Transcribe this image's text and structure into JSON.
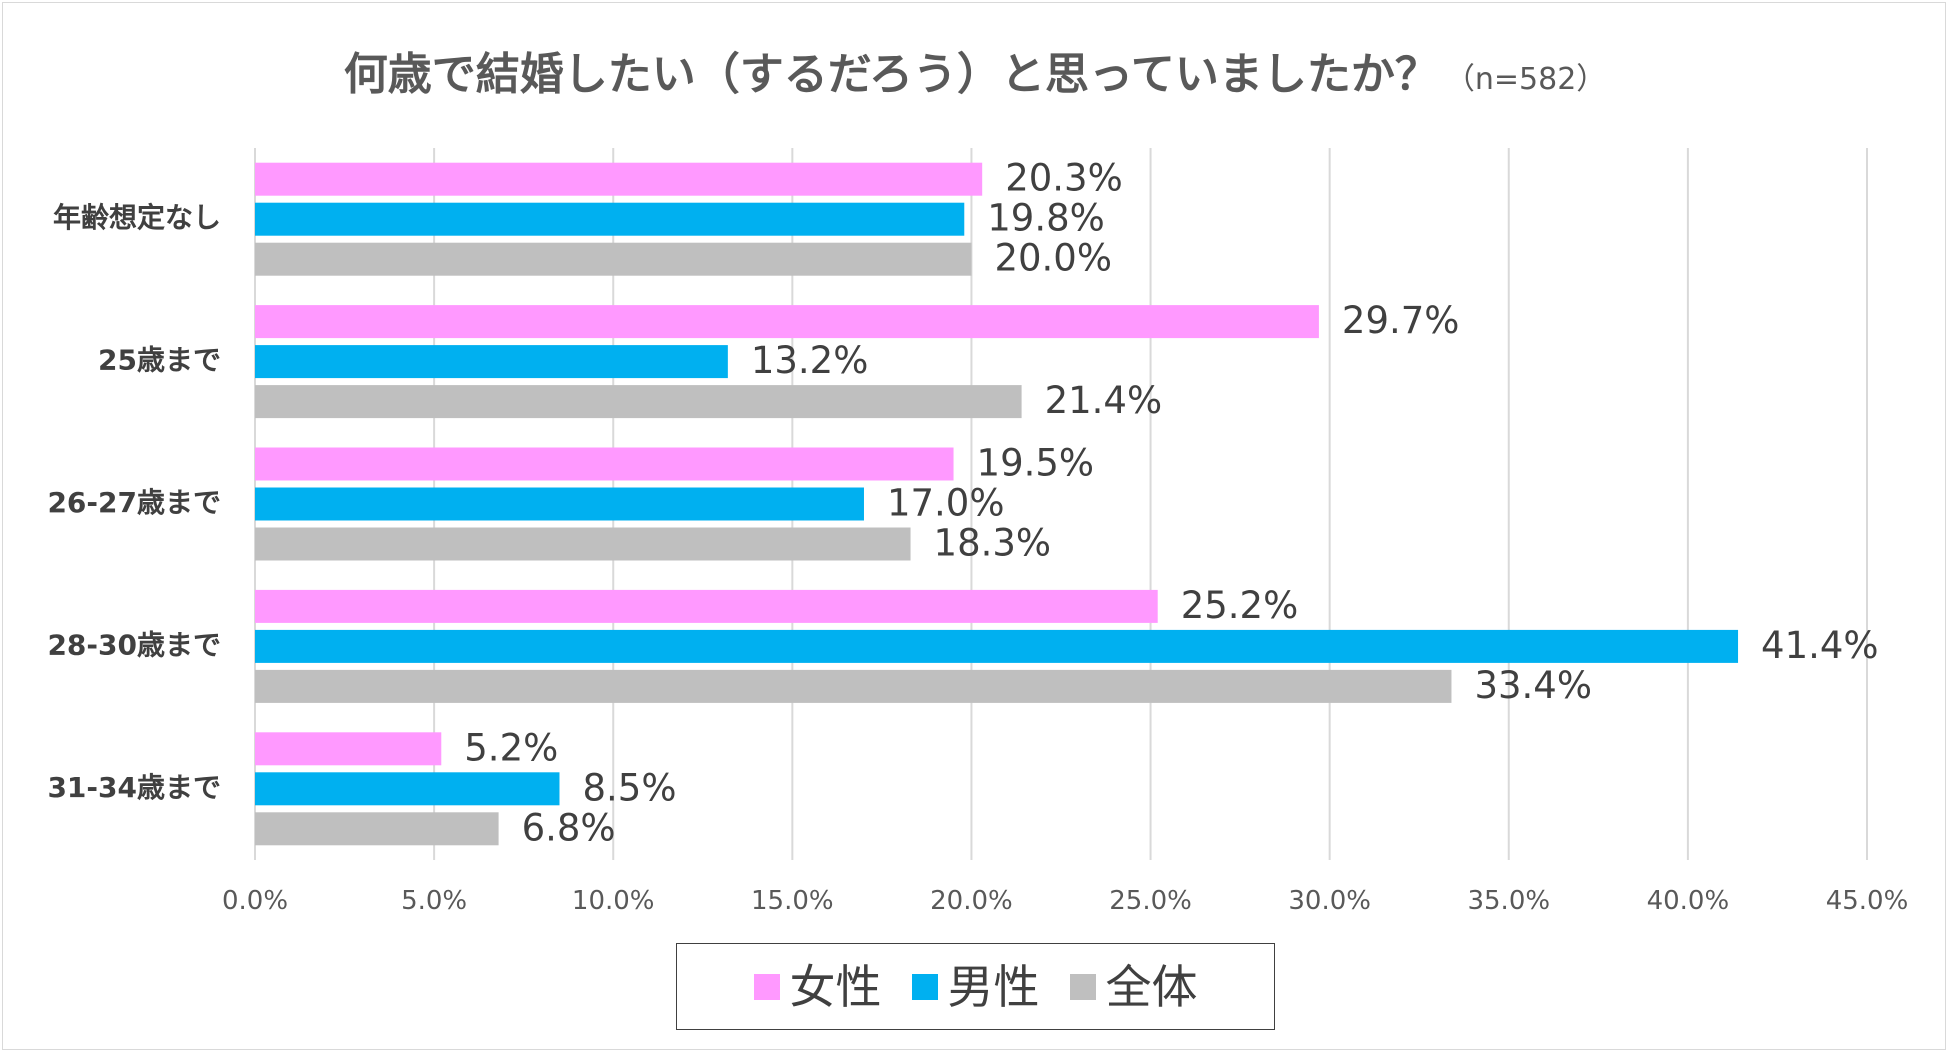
{
  "chart_data": {
    "type": "bar",
    "orientation": "horizontal",
    "title": "何歳で結婚したい（するだろう）と思っていましたか？",
    "subtitle": "（n=582）",
    "categories": [
      "年齢想定なし",
      "25歳まで",
      "26-27歳まで",
      "28-30歳まで",
      "31-34歳まで"
    ],
    "series": [
      {
        "name": "女性",
        "color": "#FF99FF",
        "values": [
          20.3,
          29.7,
          19.5,
          25.2,
          5.2
        ]
      },
      {
        "name": "男性",
        "color": "#00B0F0",
        "values": [
          19.8,
          13.2,
          17.0,
          41.4,
          8.5
        ]
      },
      {
        "name": "全体",
        "color": "#BFBFBF",
        "values": [
          20.0,
          21.4,
          18.3,
          33.4,
          6.8
        ]
      }
    ],
    "data_labels": [
      [
        "20.3%",
        "29.7%",
        "19.5%",
        "25.2%",
        "5.2%"
      ],
      [
        "19.8%",
        "13.2%",
        "17.0%",
        "41.4%",
        "8.5%"
      ],
      [
        "20.0%",
        "21.4%",
        "18.3%",
        "33.4%",
        "6.8%"
      ]
    ],
    "xlim": [
      0,
      45
    ],
    "x_ticks": [
      "0.0%",
      "5.0%",
      "10.0%",
      "15.0%",
      "20.0%",
      "25.0%",
      "30.0%",
      "35.0%",
      "40.0%",
      "45.0%"
    ],
    "xlabel": "",
    "ylabel": "",
    "grid": true,
    "legend_position": "bottom"
  }
}
